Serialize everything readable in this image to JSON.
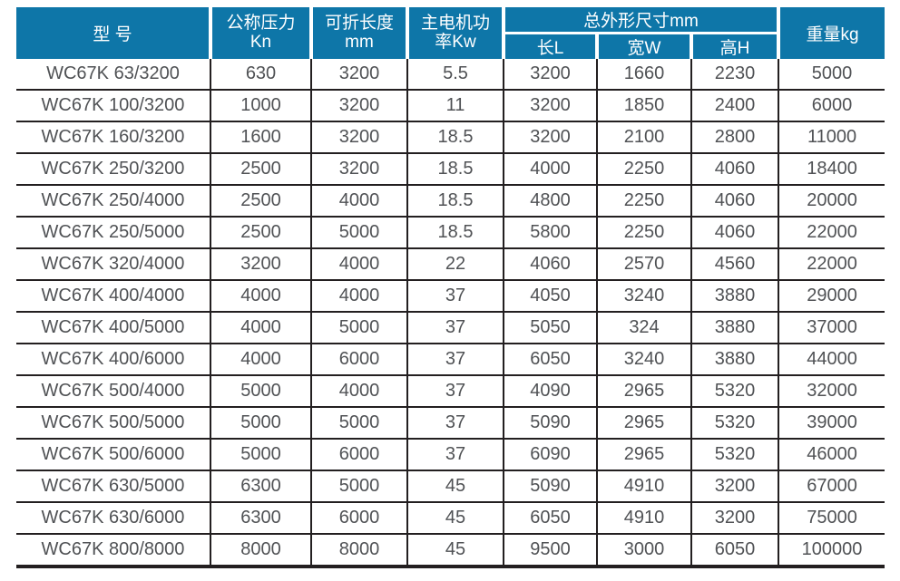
{
  "colors": {
    "header_background": "#0e76a8",
    "header_text": "#ffffff",
    "grid_line": "#231f20",
    "body_text": "#505255",
    "page_background": "#ffffff"
  },
  "table": {
    "headers": {
      "model": "型 号",
      "pressure_line1": "公称压力",
      "pressure_line2": "Kn",
      "fold_length_line1": "可折长度",
      "fold_length_line2": "mm",
      "motor_power_line1": "主电机功",
      "motor_power_line2": "率Kw",
      "dimensions_group": "总外形尺寸mm",
      "dim_length": "长L",
      "dim_width": "宽W",
      "dim_height": "高H",
      "weight": "重量kg"
    },
    "rows": [
      [
        "WC67K 63/3200",
        "630",
        "3200",
        "5.5",
        "3200",
        "1660",
        "2230",
        "5000"
      ],
      [
        "WC67K 100/3200",
        "1000",
        "3200",
        "11",
        "3200",
        "1850",
        "2400",
        "6000"
      ],
      [
        "WC67K 160/3200",
        "1600",
        "3200",
        "18.5",
        "3200",
        "2100",
        "2800",
        "11000"
      ],
      [
        "WC67K 250/3200",
        "2500",
        "3200",
        "18.5",
        "4000",
        "2250",
        "4060",
        "18400"
      ],
      [
        "WC67K 250/4000",
        "2500",
        "4000",
        "18.5",
        "4800",
        "2250",
        "4060",
        "20000"
      ],
      [
        "WC67K 250/5000",
        "2500",
        "5000",
        "18.5",
        "5800",
        "2250",
        "4060",
        "22000"
      ],
      [
        "WC67K 320/4000",
        "3200",
        "4000",
        "22",
        "4060",
        "2570",
        "4560",
        "22000"
      ],
      [
        "WC67K 400/4000",
        "4000",
        "4000",
        "37",
        "4050",
        "3240",
        "3880",
        "29000"
      ],
      [
        "WC67K 400/5000",
        "4000",
        "5000",
        "37",
        "5050",
        "324",
        "3880",
        "37000"
      ],
      [
        "WC67K 400/6000",
        "4000",
        "6000",
        "37",
        "6050",
        "3240",
        "3880",
        "44000"
      ],
      [
        "WC67K 500/4000",
        "5000",
        "4000",
        "37",
        "4090",
        "2965",
        "5320",
        "32000"
      ],
      [
        "WC67K 500/5000",
        "5000",
        "5000",
        "37",
        "5090",
        "2965",
        "5320",
        "39000"
      ],
      [
        "WC67K 500/6000",
        "5000",
        "6000",
        "37",
        "6090",
        "2965",
        "5320",
        "46000"
      ],
      [
        "WC67K 630/5000",
        "6300",
        "5000",
        "45",
        "5090",
        "4910",
        "3200",
        "67000"
      ],
      [
        "WC67K 630/6000",
        "6300",
        "6000",
        "45",
        "6050",
        "4910",
        "3200",
        "75000"
      ],
      [
        "WC67K 800/8000",
        "8000",
        "8000",
        "45",
        "9500",
        "3000",
        "6050",
        "100000"
      ]
    ]
  }
}
